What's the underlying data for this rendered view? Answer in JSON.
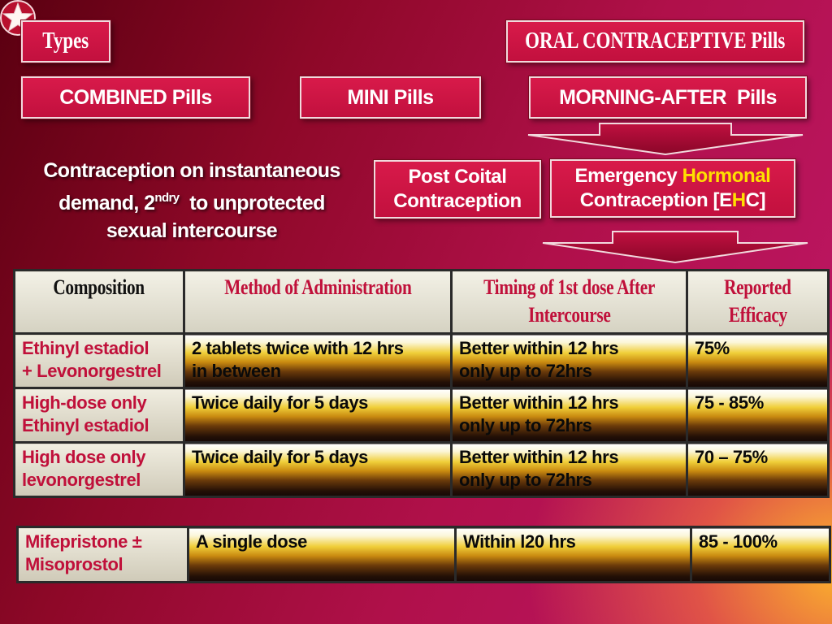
{
  "header": {
    "types_label": "Types",
    "title": "ORAL CONTRACEPTIVE Pills"
  },
  "pill_types": {
    "combined": "COMBINED Pills",
    "mini": "MINI Pills",
    "morning_after": "MORNING-AFTER  Pills"
  },
  "post_coital": {
    "line1": "Post Coital",
    "line2": "Contraception"
  },
  "ehc": {
    "line1_a": "Emergency ",
    "line1_b": "Hormonal",
    "line2_a": "Contraception [E",
    "line2_b": "H",
    "line2_c": "C]"
  },
  "lead": {
    "line1": "Contraception on instantaneous",
    "line2_a": "demand, 2",
    "line2_sup": "ndry",
    "line2_b": "  to unprotected",
    "line3": "sexual intercourse"
  },
  "table": {
    "headers": {
      "composition": "Composition",
      "method": "Method of Administration",
      "timing_1": "Timing of 1st dose  After",
      "timing_2": "Intercourse",
      "efficacy_1": "Reported",
      "efficacy_2": "Efficacy"
    },
    "rows": [
      {
        "comp_1": "Ethinyl estadiol",
        "comp_2": "+ Levonorgestrel",
        "method_1": "2 tablets twice with 12 hrs",
        "method_2": "in between",
        "timing_1": "Better within 12 hrs",
        "timing_2": "only up to 72hrs",
        "efficacy": "75%"
      },
      {
        "comp_1": "High-dose only",
        "comp_2": "Ethinyl estadiol",
        "method_1": "Twice daily for 5 days",
        "method_2": "",
        "timing_1": "Better within 12 hrs",
        "timing_2": "only up to 72hrs",
        "efficacy": "75 - 85%"
      },
      {
        "comp_1": "High dose only",
        "comp_2": "levonorgestrel",
        "method_1": "Twice daily for 5 days",
        "method_2": "",
        "timing_1": "Better within 12 hrs",
        "timing_2": "only up to 72hrs",
        "efficacy": "70 – 75%"
      }
    ]
  },
  "table2": {
    "comp_1": "Mifepristone ±",
    "comp_2": "Misoprostol",
    "method": "A single dose",
    "timing": "Within l20 hrs",
    "efficacy": "85 - 100%"
  },
  "icons": {
    "corner": "star-icon",
    "arrows": "down-arrow-icon"
  },
  "colors": {
    "accent_red": "#c0103a",
    "highlight_yellow": "#ffe000"
  }
}
